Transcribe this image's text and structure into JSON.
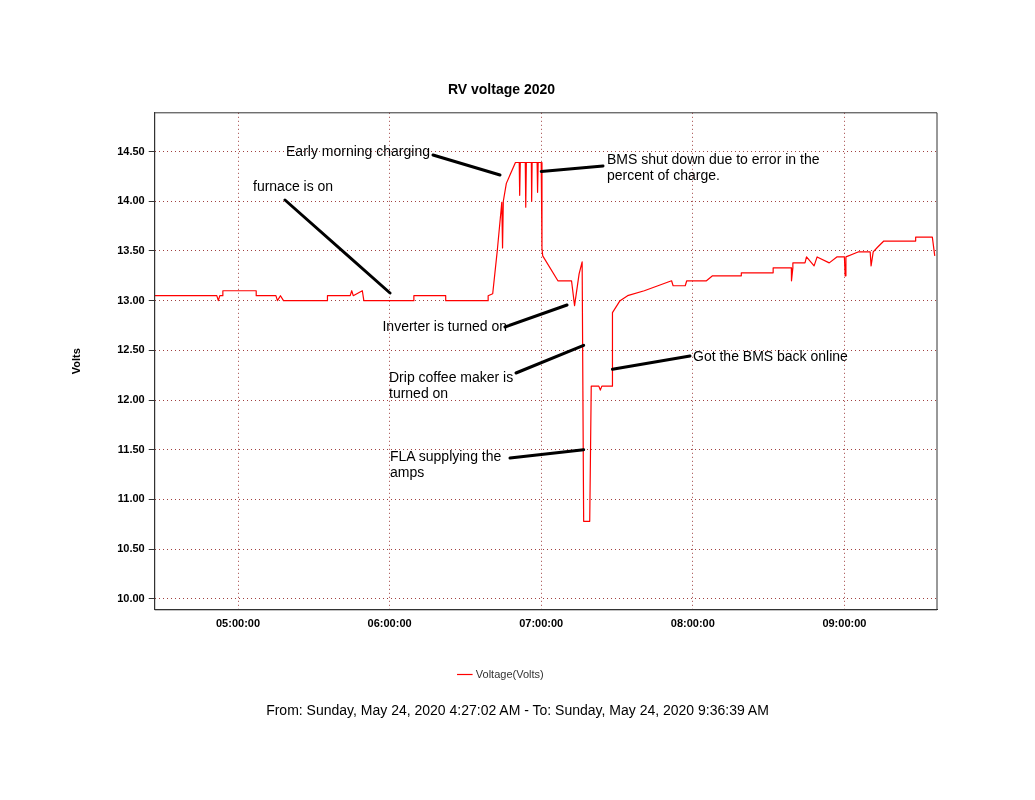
{
  "chart_data": {
    "type": "line",
    "title": "RV voltage 2020",
    "ylabel": "Volts",
    "xlim": [
      4.4506,
      9.6108
    ],
    "ylim": [
      9.89,
      14.89
    ],
    "xticks": [
      {
        "value": 5,
        "label": "05:00:00"
      },
      {
        "value": 6,
        "label": "06:00:00"
      },
      {
        "value": 7,
        "label": "07:00:00"
      },
      {
        "value": 8,
        "label": "08:00:00"
      },
      {
        "value": 9,
        "label": "09:00:00"
      }
    ],
    "yticks": [
      {
        "value": 10,
        "label": "10.00"
      },
      {
        "value": 10.5,
        "label": "10.50"
      },
      {
        "value": 11,
        "label": "11.00"
      },
      {
        "value": 11.5,
        "label": "11.50"
      },
      {
        "value": 12,
        "label": "12.00"
      },
      {
        "value": 12.5,
        "label": "12.50"
      },
      {
        "value": 13,
        "label": "13.00"
      },
      {
        "value": 13.5,
        "label": "13.50"
      },
      {
        "value": 14,
        "label": "14.00"
      },
      {
        "value": 14.5,
        "label": "14.50"
      }
    ],
    "grid": true,
    "legend": "bottom",
    "marker": "none",
    "line_style": "solid",
    "series": [
      {
        "name": "Voltage(Volts)",
        "color": "#ff0000",
        "x": [
          4.4506,
          4.86,
          4.87,
          4.88,
          4.9,
          4.9,
          5.12,
          5.12,
          5.25,
          5.26,
          5.28,
          5.3,
          5.59,
          5.59,
          5.74,
          5.75,
          5.76,
          5.82,
          5.83,
          6.16,
          6.16,
          6.37,
          6.37,
          6.65,
          6.65,
          6.68,
          6.71,
          6.74,
          6.745,
          6.75,
          6.77,
          6.83,
          6.855,
          6.858,
          6.862,
          6.895,
          6.898,
          6.902,
          6.935,
          6.937,
          6.94,
          6.973,
          6.976,
          6.98,
          7.0,
          7.005,
          7.01,
          7.11,
          7.2,
          7.22,
          7.25,
          7.27,
          7.28,
          7.32,
          7.33,
          7.38,
          7.39,
          7.4,
          7.47,
          7.47,
          7.52,
          7.57,
          7.68,
          7.86,
          7.87,
          7.95,
          7.96,
          8.09,
          8.13,
          8.32,
          8.32,
          8.53,
          8.53,
          8.65,
          8.651,
          8.66,
          8.66,
          8.74,
          8.75,
          8.8,
          8.82,
          8.9,
          8.95,
          9.0,
          9.005,
          9.01,
          9.09,
          9.17,
          9.176,
          9.19,
          9.22,
          9.26,
          9.47,
          9.47,
          9.58,
          9.596
        ],
        "values": [
          13.05,
          13.05,
          13.0,
          13.05,
          13.05,
          13.1,
          13.1,
          13.05,
          13.05,
          13.0,
          13.05,
          13.0,
          13.0,
          13.05,
          13.05,
          13.1,
          13.05,
          13.1,
          13.0,
          13.0,
          13.05,
          13.05,
          13.0,
          13.0,
          13.05,
          13.07,
          13.5,
          13.99,
          13.53,
          14.0,
          14.18,
          14.39,
          14.39,
          14.06,
          14.39,
          14.39,
          13.94,
          14.39,
          14.39,
          14.0,
          14.39,
          14.39,
          14.09,
          14.39,
          14.39,
          13.53,
          13.45,
          13.2,
          13.2,
          12.95,
          13.27,
          13.39,
          10.78,
          10.78,
          12.14,
          12.14,
          12.1,
          12.14,
          12.14,
          12.88,
          13.0,
          13.05,
          13.1,
          13.2,
          13.15,
          13.15,
          13.2,
          13.2,
          13.25,
          13.25,
          13.28,
          13.28,
          13.33,
          13.33,
          13.2,
          13.33,
          13.38,
          13.38,
          13.44,
          13.35,
          13.44,
          13.38,
          13.44,
          13.44,
          13.25,
          13.44,
          13.49,
          13.49,
          13.35,
          13.49,
          13.54,
          13.6,
          13.6,
          13.64,
          13.64,
          13.45
        ]
      }
    ],
    "annotations": [
      "Early morning charging",
      "furnace is on",
      {
        "text": "BMS shut down due to error in the percent of charge.",
        "x": 7.0,
        "y": 14.3
      },
      "Inverter is turned on",
      {
        "text": "Drip coffee maker is turned on",
        "x": 7.28,
        "y": 12.55
      },
      {
        "text": "FLA supplying the amps",
        "x": 7.28,
        "y": 11.5
      },
      {
        "text": "Got the BMS back online",
        "x": 7.47,
        "y": 12.31
      },
      "From: Sunday, May 24, 2020 4:27:02 AM  -  To: Sunday, May 24, 2020 9:36:39 AM"
    ]
  }
}
